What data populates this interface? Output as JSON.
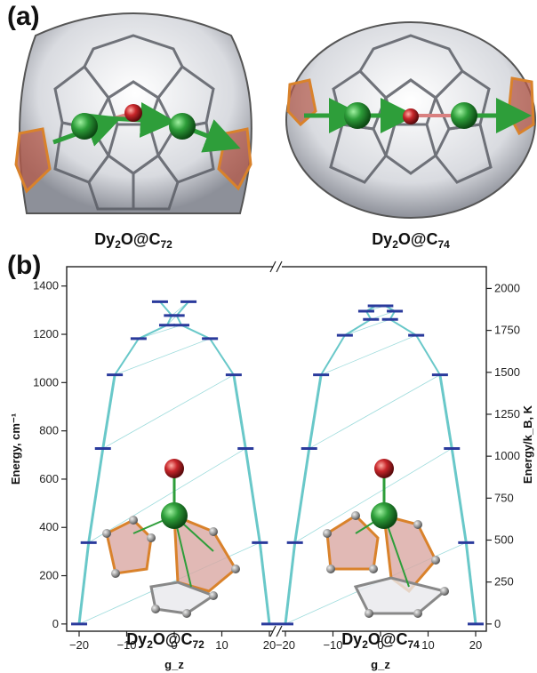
{
  "panels": {
    "a": "(a)",
    "b": "(b)"
  },
  "molecules": {
    "c72": {
      "base": "Dy",
      "sub1": "2",
      "mid": "O@C",
      "sub2": "72"
    },
    "c74": {
      "base": "Dy",
      "sub1": "2",
      "mid": "O@C",
      "sub2": "74"
    }
  },
  "colors": {
    "transition": "#4fbfc0",
    "level": "#2a3a9c",
    "dy_atom": "#2e9e3a",
    "o_atom": "#c8262a",
    "pentagon": "#d9822b",
    "cage": "#c9ccd3"
  },
  "chart_data": {
    "type": "line",
    "ylabel_left": "Energy, cm⁻¹",
    "ylabel_right": "Energy/k_B, K",
    "xlabel": "g_z",
    "ylim_left": [
      -30,
      1480
    ],
    "ylim_right_ticks": [
      0,
      250,
      500,
      750,
      1000,
      1250,
      1500,
      1750,
      2000
    ],
    "yticks_left": [
      0,
      200,
      400,
      600,
      800,
      1000,
      1200,
      1400
    ],
    "xticks": [
      -20,
      -10,
      0,
      10,
      20
    ],
    "xlim": [
      -24,
      24
    ],
    "axis_break": true,
    "series": [
      {
        "name": "Dy₂O@C₇₂",
        "levels": [
          {
            "energy": 0,
            "gz": 20
          },
          {
            "energy": 337,
            "gz": 18
          },
          {
            "energy": 727,
            "gz": 15
          },
          {
            "energy": 1032,
            "gz": 12.5
          },
          {
            "energy": 1182,
            "gz": 7.5
          },
          {
            "energy": 1238,
            "gz": 1.5
          },
          {
            "energy": 1278,
            "gz": 0.5
          },
          {
            "energy": 1335,
            "gz": 3
          }
        ]
      },
      {
        "name": "Dy₂O@C₇₄",
        "levels": [
          {
            "energy": 0,
            "gz": 20
          },
          {
            "energy": 337,
            "gz": 18
          },
          {
            "energy": 727,
            "gz": 15
          },
          {
            "energy": 1032,
            "gz": 12.5
          },
          {
            "energy": 1196,
            "gz": 7.5
          },
          {
            "energy": 1262,
            "gz": 2
          },
          {
            "energy": 1296,
            "gz": 3
          },
          {
            "energy": 1318,
            "gz": 1
          }
        ]
      }
    ]
  }
}
